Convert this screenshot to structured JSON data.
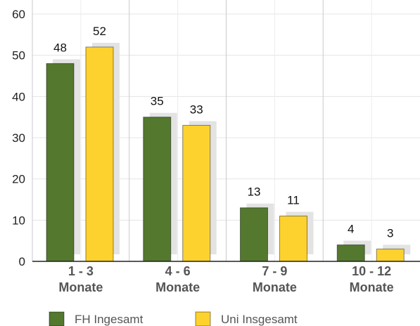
{
  "chart_data": {
    "type": "bar",
    "categories": [
      [
        "1 - 3",
        "Monate"
      ],
      [
        "4 - 6",
        "Monate"
      ],
      [
        "7 - 9",
        "Monate"
      ],
      [
        "10 - 12",
        "Monate"
      ]
    ],
    "series": [
      {
        "name": "FH Ingesamt",
        "values": [
          48,
          35,
          13,
          4
        ],
        "color": "#53782e"
      },
      {
        "name": "Uni Insgesamt",
        "values": [
          52,
          33,
          11,
          3
        ],
        "color": "#fdd22e"
      }
    ],
    "ylim": [
      0,
      60
    ],
    "yticks": [
      0,
      10,
      20,
      30,
      40,
      50,
      60
    ],
    "grid": true,
    "legend": "bottom",
    "shadow_color": "#e3e3e3"
  }
}
